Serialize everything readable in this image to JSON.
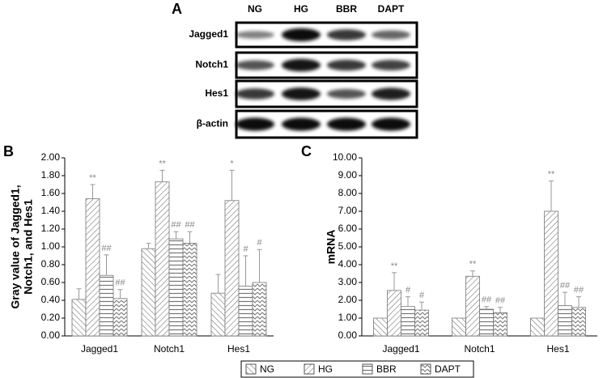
{
  "panel_a": {
    "label": "A",
    "lanes": [
      "NG",
      "HG",
      "BBR",
      "DAPT"
    ],
    "rows": [
      "Jagged1",
      "Notch1",
      "Hes1",
      "β-actin"
    ]
  },
  "chart_data": [
    {
      "type": "bar",
      "panel": "B",
      "ylabel": [
        "Gray value of Jagged1,",
        "Notch1, and Hes1"
      ],
      "categories": [
        "Jagged1",
        "Notch1",
        "Hes1"
      ],
      "ylim": [
        0,
        2
      ],
      "yticks": [
        {
          "value": 0,
          "label": "0.00"
        },
        {
          "value": 0.2,
          "label": "0.20"
        },
        {
          "value": 0.4,
          "label": "0.40"
        },
        {
          "value": 0.6,
          "label": "0.60"
        },
        {
          "value": 0.8,
          "label": "0.80"
        },
        {
          "value": 1,
          "label": "1.00"
        },
        {
          "value": 1.2,
          "label": "1.20"
        },
        {
          "value": 1.4,
          "label": "1.40"
        },
        {
          "value": 1.6,
          "label": "1.60"
        },
        {
          "value": 1.8,
          "label": "1.80"
        },
        {
          "value": 2,
          "label": "2.00"
        }
      ],
      "series": [
        {
          "name": "NG",
          "pattern": "backslash",
          "values": [
            0.41,
            0.98,
            0.48
          ],
          "errors": [
            0.12,
            0.06,
            0.21
          ]
        },
        {
          "name": "HG",
          "pattern": "slash",
          "values": [
            1.54,
            1.73,
            1.52
          ],
          "errors": [
            0.16,
            0.13,
            0.34
          ],
          "labels": [
            "**",
            "**",
            "*"
          ]
        },
        {
          "name": "BBR",
          "pattern": "hlines",
          "values": [
            0.68,
            1.09,
            0.56
          ],
          "errors": [
            0.23,
            0.08,
            0.34
          ],
          "labels": [
            "##",
            "##",
            "#"
          ]
        },
        {
          "name": "DAPT",
          "pattern": "zigzag",
          "values": [
            0.42,
            1.04,
            0.6
          ],
          "errors": [
            0.1,
            0.13,
            0.37
          ],
          "labels": [
            "##",
            "##",
            "#"
          ]
        }
      ]
    },
    {
      "type": "bar",
      "panel": "C",
      "ylabel": [
        "mRNA"
      ],
      "categories": [
        "Jagged1",
        "Notch1",
        "Hes1"
      ],
      "ylim": [
        0,
        10
      ],
      "yticks": [
        {
          "value": 0,
          "label": "0.00"
        },
        {
          "value": 1,
          "label": "1.00"
        },
        {
          "value": 2,
          "label": "2.00"
        },
        {
          "value": 3,
          "label": "3.00"
        },
        {
          "value": 4,
          "label": "4.00"
        },
        {
          "value": 5,
          "label": "5.00"
        },
        {
          "value": 6,
          "label": "6.00"
        },
        {
          "value": 7,
          "label": "7.00"
        },
        {
          "value": 8,
          "label": "8.00"
        },
        {
          "value": 9,
          "label": "9.00"
        },
        {
          "value": 10,
          "label": "10.00"
        }
      ],
      "series": [
        {
          "name": "NG",
          "pattern": "backslash",
          "values": [
            1,
            1,
            1
          ],
          "errors": [
            0,
            0,
            0
          ]
        },
        {
          "name": "HG",
          "pattern": "slash",
          "values": [
            2.55,
            3.35,
            7.0
          ],
          "errors": [
            1.0,
            0.3,
            1.7
          ],
          "labels": [
            "**",
            "**",
            "**"
          ]
        },
        {
          "name": "BBR",
          "pattern": "hlines",
          "values": [
            1.65,
            1.5,
            1.7
          ],
          "errors": [
            0.55,
            0.15,
            0.75
          ],
          "labels": [
            "#",
            "##",
            "##"
          ]
        },
        {
          "name": "DAPT",
          "pattern": "zigzag",
          "values": [
            1.45,
            1.3,
            1.6
          ],
          "errors": [
            0.45,
            0.3,
            0.6
          ],
          "labels": [
            "#",
            "##",
            "##"
          ]
        }
      ]
    }
  ]
}
